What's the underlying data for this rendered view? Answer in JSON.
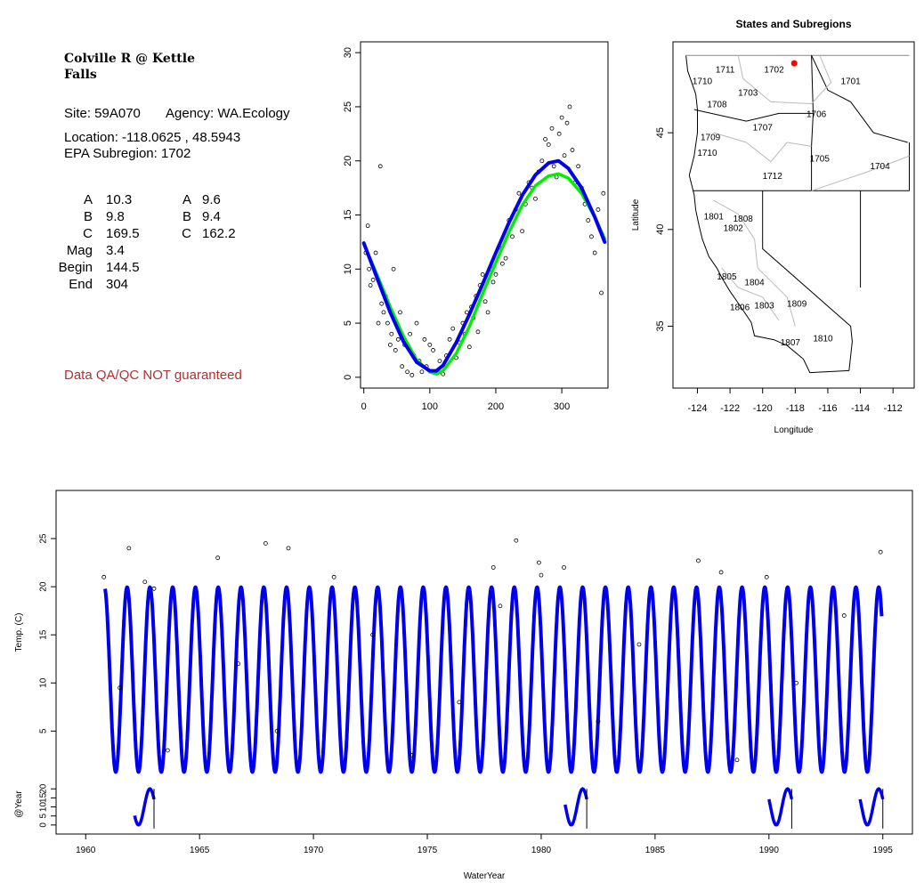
{
  "info": {
    "title": "Colville R @ Kettle\nFalls",
    "site_label": "Site: 59A070",
    "agency_label": "Agency: WA.Ecology",
    "location_label": "Location: -118.0625 , 48.5943",
    "subregion_label": "EPA Subregion: 1702",
    "param_labels": [
      "A",
      "B",
      "C",
      "Mag",
      "Begin",
      "End"
    ],
    "params_col1": [
      "10.3",
      "9.8",
      "169.5",
      "3.4",
      "144.5",
      "304"
    ],
    "params_col2_labels": [
      "A",
      "B",
      "C"
    ],
    "params_col2": [
      "9.6",
      "9.4",
      "162.2"
    ],
    "disclaimer": "Data QA/QC NOT guaranteed"
  },
  "colors": {
    "fit_blue": "#0000ee",
    "fit_green": "#00ee00",
    "marker": "#ff0000",
    "border": "#000000",
    "region": "#bbbbbb"
  },
  "chart_data": [
    {
      "type": "scatter",
      "title": "",
      "xlabel": "",
      "ylabel": "",
      "xlim": [
        -5,
        370
      ],
      "ylim": [
        -1,
        31
      ],
      "xticks": [
        0,
        100,
        200,
        300
      ],
      "yticks": [
        0,
        5,
        10,
        15,
        20,
        25,
        30
      ],
      "series": [
        {
          "kind": "line",
          "color": "#00ee00",
          "x": [
            0,
            20,
            40,
            60,
            80,
            100,
            110,
            120,
            140,
            160,
            180,
            200,
            220,
            240,
            260,
            280,
            295,
            310,
            330,
            350,
            365
          ],
          "y": [
            12.3,
            9.5,
            6.5,
            3.8,
            1.6,
            0.5,
            0.3,
            0.6,
            2.2,
            4.7,
            7.7,
            10.6,
            13.4,
            15.9,
            17.7,
            18.6,
            18.8,
            18.4,
            17.0,
            14.8,
            12.8
          ]
        },
        {
          "kind": "line",
          "color": "#0000ee",
          "x": [
            0,
            20,
            40,
            60,
            80,
            100,
            110,
            120,
            140,
            160,
            180,
            200,
            220,
            240,
            260,
            280,
            295,
            310,
            330,
            350,
            365
          ],
          "y": [
            12.4,
            9.2,
            6.0,
            3.3,
            1.4,
            0.6,
            0.6,
            1.1,
            3.2,
            5.8,
            8.6,
            11.5,
            14.3,
            16.8,
            18.7,
            19.8,
            20.0,
            19.3,
            17.5,
            14.8,
            12.5
          ]
        }
      ],
      "points": {
        "x": [
          3,
          6,
          8,
          10,
          14,
          18,
          22,
          25,
          27,
          30,
          33,
          36,
          40,
          42,
          45,
          48,
          52,
          55,
          58,
          62,
          66,
          70,
          73,
          76,
          80,
          84,
          88,
          92,
          95,
          100,
          105,
          110,
          115,
          120,
          125,
          130,
          135,
          140,
          145,
          150,
          153,
          156,
          160,
          163,
          166,
          170,
          173,
          176,
          180,
          184,
          188,
          192,
          196,
          200,
          205,
          210,
          215,
          220,
          225,
          230,
          235,
          240,
          245,
          250,
          255,
          260,
          265,
          270,
          275,
          280,
          285,
          288,
          292,
          296,
          300,
          304,
          308,
          312,
          316,
          320,
          325,
          330,
          335,
          340,
          345,
          350,
          355,
          360,
          363
        ],
        "y": [
          11.5,
          14.0,
          10.0,
          8.5,
          9.0,
          11.5,
          5.0,
          19.5,
          6.8,
          6.0,
          7.5,
          5.0,
          3.0,
          4.0,
          10.0,
          2.5,
          3.5,
          6.0,
          1.0,
          3.0,
          0.5,
          4.0,
          0.2,
          2.0,
          5.0,
          1.5,
          0.5,
          3.5,
          1.0,
          3.0,
          2.5,
          0.5,
          1.5,
          0.3,
          2.0,
          3.5,
          4.5,
          1.8,
          3.2,
          5.0,
          4.0,
          6.0,
          2.8,
          6.5,
          5.5,
          7.5,
          4.2,
          8.5,
          9.5,
          7.0,
          6.0,
          10.0,
          8.8,
          9.5,
          12.0,
          10.5,
          11.0,
          14.5,
          13.0,
          15.5,
          17.0,
          13.5,
          16.0,
          18.0,
          17.5,
          16.5,
          19.0,
          20.0,
          22.0,
          21.5,
          23.0,
          19.5,
          18.5,
          22.5,
          24.0,
          20.5,
          23.5,
          25.0,
          21.0,
          18.0,
          19.5,
          17.5,
          16.0,
          14.5,
          13.0,
          11.5,
          15.5,
          7.8,
          17.0
        ]
      }
    },
    {
      "type": "map",
      "title": "States and Subregions",
      "xlabel": "Longitude",
      "ylabel": "Latitude",
      "xlim": [
        -125.5,
        -110.7
      ],
      "ylim": [
        31.8,
        49.7
      ],
      "xticks": [
        -124,
        -122,
        -120,
        -118,
        -116,
        -114,
        -112
      ],
      "yticks": [
        35,
        40,
        45
      ],
      "marker": {
        "lon": -118.06,
        "lat": 48.59
      },
      "region_labels": [
        {
          "t": "1711",
          "lon": -122.3,
          "lat": 48.3
        },
        {
          "t": "1710",
          "lon": -123.7,
          "lat": 47.7
        },
        {
          "t": "1702",
          "lon": -119.3,
          "lat": 48.3
        },
        {
          "t": "1701",
          "lon": -114.6,
          "lat": 47.7
        },
        {
          "t": "1703",
          "lon": -120.9,
          "lat": 47.1
        },
        {
          "t": "1708",
          "lon": -122.8,
          "lat": 46.5
        },
        {
          "t": "1706",
          "lon": -116.7,
          "lat": 46.0
        },
        {
          "t": "1707",
          "lon": -120.0,
          "lat": 45.3
        },
        {
          "t": "1709",
          "lon": -123.2,
          "lat": 44.8
        },
        {
          "t": "1710",
          "lon": -123.4,
          "lat": 44.0
        },
        {
          "t": "1705",
          "lon": -116.5,
          "lat": 43.7
        },
        {
          "t": "1704",
          "lon": -112.8,
          "lat": 43.3
        },
        {
          "t": "1712",
          "lon": -119.4,
          "lat": 42.8
        },
        {
          "t": "1801",
          "lon": -123.0,
          "lat": 40.7
        },
        {
          "t": "1808",
          "lon": -121.2,
          "lat": 40.6
        },
        {
          "t": "1802",
          "lon": -121.8,
          "lat": 40.1
        },
        {
          "t": "1805",
          "lon": -122.2,
          "lat": 37.6
        },
        {
          "t": "1804",
          "lon": -120.5,
          "lat": 37.3
        },
        {
          "t": "1806",
          "lon": -121.4,
          "lat": 36.0
        },
        {
          "t": "1803",
          "lon": -119.9,
          "lat": 36.1
        },
        {
          "t": "1809",
          "lon": -117.9,
          "lat": 36.2
        },
        {
          "t": "1807",
          "lon": -118.3,
          "lat": 34.2
        },
        {
          "t": "1810",
          "lon": -116.3,
          "lat": 34.4
        }
      ]
    },
    {
      "type": "line",
      "title": "",
      "xlabel": "WaterYear",
      "ylabel": "Temp. (C)",
      "xlim": [
        1958.7,
        1996.3
      ],
      "ylim": [
        0.5,
        30
      ],
      "xticks": [
        1960,
        1965,
        1970,
        1975,
        1980,
        1985,
        1990,
        1995
      ],
      "yticks": [
        5,
        10,
        15,
        20,
        25
      ],
      "series": [
        {
          "kind": "sinusoid",
          "color": "#0000ee",
          "start": 1960.85,
          "end": 1994.95,
          "mean": 10.35,
          "amplitude": 9.6,
          "peak_year_fraction": 0.82
        }
      ],
      "points": {
        "x": [
          1960.8,
          1961.9,
          1962.6,
          1963.0,
          1965.8,
          1967.9,
          1968.9,
          1970.9,
          1977.9,
          1978.9,
          1979.9,
          1980.0,
          1981.0,
          1986.9,
          1987.9,
          1989.9,
          1994.9,
          1961.5,
          1963.6,
          1966.7,
          1968.4,
          1972.6,
          1974.3,
          1976.4,
          1978.2,
          1982.5,
          1984.3,
          1988.6,
          1991.2,
          1993.3
        ],
        "y": [
          21.0,
          24.0,
          20.5,
          19.8,
          23.0,
          24.5,
          24.0,
          21.0,
          22.0,
          24.8,
          22.5,
          21.2,
          22.0,
          22.7,
          21.5,
          21.0,
          23.6,
          9.5,
          3.0,
          12.0,
          5.0,
          15.0,
          2.5,
          8.0,
          18.0,
          6.0,
          14.0,
          2.0,
          10.0,
          17.0
        ]
      }
    },
    {
      "type": "line",
      "title": "",
      "xlabel": "",
      "ylabel": "@Year",
      "ylim": [
        -5,
        28
      ],
      "yticks": [
        0,
        5,
        10,
        15,
        20
      ],
      "segments": [
        {
          "start": 1962.15,
          "end": 1963.0
        },
        {
          "start": 1981.05,
          "end": 1982.0
        },
        {
          "start": 1990.0,
          "end": 1991.0
        },
        {
          "start": 1994.0,
          "end": 1995.0
        }
      ]
    }
  ]
}
